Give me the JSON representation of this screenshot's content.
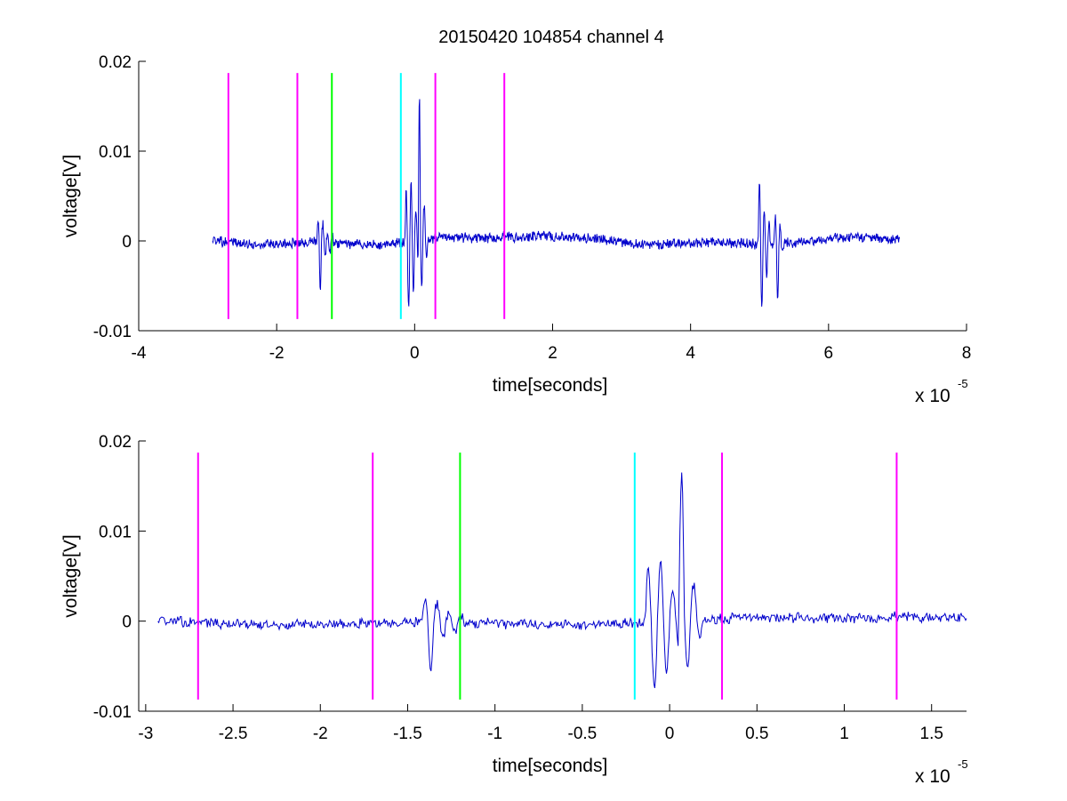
{
  "figure": {
    "title": "20150420 104854 channel 4",
    "background": "#ffffff"
  },
  "colors": {
    "signal": "#0000cc",
    "magenta": "#ff00ff",
    "green": "#00ff00",
    "cyan": "#00ffff",
    "axes": "#000000"
  },
  "chart_data": [
    {
      "type": "line",
      "title": "20150420 104854 channel 4",
      "xlabel": "time[seconds]",
      "ylabel": "voltage[V]",
      "x_multiplier": "x 10",
      "x_exponent": "-5",
      "xlim": [
        -4,
        8
      ],
      "ylim": [
        -0.01,
        0.02
      ],
      "x_ticks": [
        -4,
        -2,
        0,
        2,
        4,
        6,
        8
      ],
      "x_tick_labels": [
        "-4",
        "-2",
        "0",
        "2",
        "4",
        "6",
        "8"
      ],
      "y_ticks": [
        -0.01,
        0,
        0.01,
        0.02
      ],
      "y_tick_labels": [
        "-0.01",
        "0",
        "0.01",
        "0.02"
      ],
      "grid": false,
      "signal_range": [
        -2.93,
        7.03
      ],
      "bursts": [
        {
          "t": -1.4,
          "amps": [
            0.0026,
            -0.0051,
            0.0022,
            -0.0018,
            0.0012,
            -0.001,
            0.0009
          ]
        },
        {
          "t": -0.12,
          "amps": [
            0.006,
            -0.0075,
            0.0068,
            -0.0055,
            0.0035,
            -0.003
          ]
        },
        {
          "t": 0.07,
          "amps": [
            0.0168,
            -0.0052,
            0.004,
            -0.002
          ]
        },
        {
          "t": 5.0,
          "amps": [
            0.007,
            -0.0075,
            0.004,
            -0.0035,
            0.002
          ]
        },
        {
          "t": 5.23,
          "amps": [
            0.0033,
            -0.0063,
            0.002,
            -0.001
          ]
        }
      ],
      "markers": [
        {
          "x": -2.7,
          "color": "magenta",
          "y_range": [
            -0.0087,
            0.0187
          ]
        },
        {
          "x": -1.7,
          "color": "magenta",
          "y_range": [
            -0.0087,
            0.0187
          ]
        },
        {
          "x": -1.2,
          "color": "green",
          "y_range": [
            -0.0087,
            0.0187
          ]
        },
        {
          "x": -0.2,
          "color": "cyan",
          "y_range": [
            -0.0087,
            0.0187
          ]
        },
        {
          "x": 0.3,
          "color": "magenta",
          "y_range": [
            -0.0087,
            0.0187
          ]
        },
        {
          "x": 1.3,
          "color": "magenta",
          "y_range": [
            -0.0087,
            0.0187
          ]
        }
      ]
    },
    {
      "type": "line",
      "xlabel": "time[seconds]",
      "ylabel": "voltage[V]",
      "x_multiplier": "x 10",
      "x_exponent": "-5",
      "xlim": [
        -3.04,
        1.7
      ],
      "ylim": [
        -0.01,
        0.02
      ],
      "x_ticks": [
        -3,
        -2.5,
        -2,
        -1.5,
        -1,
        -0.5,
        0,
        0.5,
        1,
        1.5
      ],
      "x_tick_labels": [
        "-3",
        "-2.5",
        "-2",
        "-1.5",
        "-1",
        "-0.5",
        "0",
        "0.5",
        "1",
        "1.5"
      ],
      "y_ticks": [
        -0.01,
        0,
        0.01,
        0.02
      ],
      "y_tick_labels": [
        "-0.01",
        "0",
        "0.01",
        "0.02"
      ],
      "grid": false,
      "signal_range": [
        -2.93,
        1.7
      ],
      "bursts": [
        {
          "t": -1.4,
          "amps": [
            0.0026,
            -0.0051,
            0.0022,
            -0.0018,
            0.0012,
            -0.001,
            0.0009
          ]
        },
        {
          "t": -0.12,
          "amps": [
            0.006,
            -0.0075,
            0.0068,
            -0.0055,
            0.0035,
            -0.003
          ]
        },
        {
          "t": 0.07,
          "amps": [
            0.0168,
            -0.0052,
            0.004,
            -0.002
          ]
        }
      ],
      "markers": [
        {
          "x": -2.7,
          "color": "magenta",
          "y_range": [
            -0.0087,
            0.0187
          ]
        },
        {
          "x": -1.7,
          "color": "magenta",
          "y_range": [
            -0.0087,
            0.0187
          ]
        },
        {
          "x": -1.2,
          "color": "green",
          "y_range": [
            -0.0087,
            0.0187
          ]
        },
        {
          "x": -0.2,
          "color": "cyan",
          "y_range": [
            -0.0087,
            0.0187
          ]
        },
        {
          "x": 0.3,
          "color": "magenta",
          "y_range": [
            -0.0087,
            0.0187
          ]
        },
        {
          "x": 1.3,
          "color": "magenta",
          "y_range": [
            -0.0087,
            0.0187
          ]
        }
      ]
    }
  ]
}
